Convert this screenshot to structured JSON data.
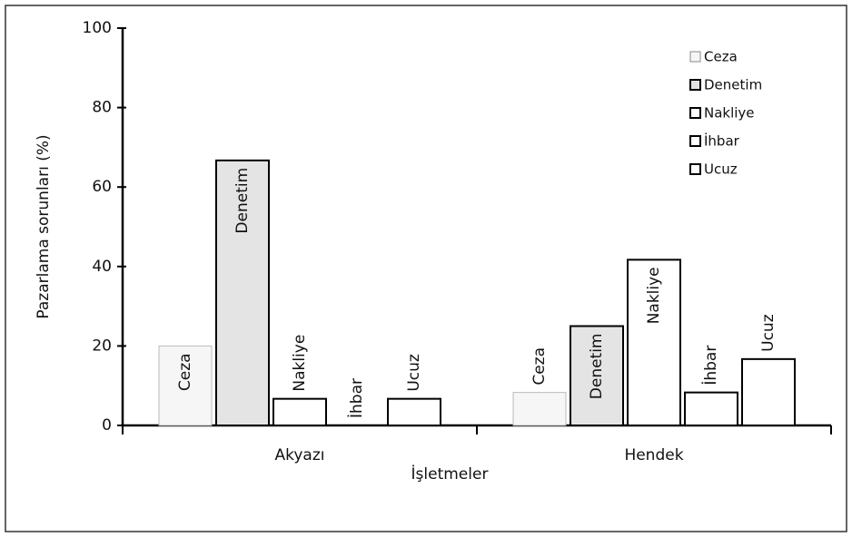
{
  "chart_data": {
    "type": "bar",
    "categories": [
      "Akyazı",
      "Hendek"
    ],
    "series": [
      {
        "name": "Ceza",
        "color": "#f6f6f6",
        "values": [
          20,
          8.3
        ]
      },
      {
        "name": "Denetim",
        "color": "#e4e4e4",
        "values": [
          66.7,
          25
        ]
      },
      {
        "name": "Nakliye",
        "color": "#ffffff",
        "values": [
          6.7,
          41.7
        ]
      },
      {
        "name": "İhbar",
        "color": "#ffffff",
        "values": [
          0,
          8.3
        ]
      },
      {
        "name": "Ucuz",
        "color": "#ffffff",
        "values": [
          6.7,
          16.7
        ]
      }
    ],
    "xlabel": "İşletmeler",
    "ylabel": "Pazarlama sorunları (%)",
    "ylim": [
      0,
      100
    ],
    "yticks": [
      0,
      20,
      40,
      60,
      80,
      100
    ],
    "legend": "upper right"
  }
}
